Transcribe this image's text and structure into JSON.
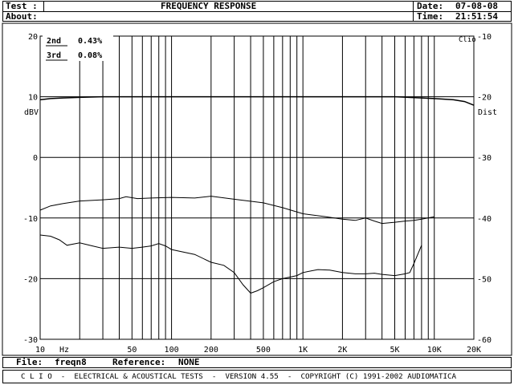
{
  "header": {
    "test_label": "Test :",
    "about_label": "About:",
    "title": "FREQUENCY RESPONSE",
    "date_label": "Date:",
    "date_value": "07-08-08",
    "time_label": "Time:",
    "time_value": "21:51:54"
  },
  "footer": {
    "file_label": "File:",
    "file_value": "freqn8",
    "reference_label": "Reference:",
    "reference_value": "NONE",
    "banner": "C L I O  -  ELECTRICAL & ACOUSTICAL TESTS  -  VERSION 4.55  -  COPYRIGHT (C) 1991-2002 AUDIOMATICA"
  },
  "chart_data": {
    "type": "line",
    "title": "FREQUENCY RESPONSE",
    "xlabel": "Hz",
    "ylabel": "dBV",
    "y2label": "Dist",
    "corner_label": "Clio",
    "xscale": "log",
    "xlim": [
      10,
      20000
    ],
    "ylim": [
      -30,
      20
    ],
    "y2lim": [
      -60,
      -10
    ],
    "grid": true,
    "x_major_ticks": [
      {
        "v": 10,
        "l": "10"
      },
      {
        "v": 50,
        "l": "50"
      },
      {
        "v": 100,
        "l": "100"
      },
      {
        "v": 200,
        "l": "200"
      },
      {
        "v": 500,
        "l": "500"
      },
      {
        "v": 1000,
        "l": "1K"
      },
      {
        "v": 2000,
        "l": "2K"
      },
      {
        "v": 5000,
        "l": "5K"
      },
      {
        "v": 10000,
        "l": "10K"
      },
      {
        "v": 20000,
        "l": "20K"
      }
    ],
    "y_ticks": [
      20,
      10,
      0,
      -10,
      -20,
      -30
    ],
    "y2_ticks": [
      -10,
      -20,
      -30,
      -40,
      -50,
      -60
    ],
    "legend": [
      {
        "label": "2nd",
        "value": "0.43%"
      },
      {
        "label": "3rd",
        "value": "0.08%"
      }
    ],
    "series": [
      {
        "axis": "left",
        "points": [
          [
            10,
            9.5
          ],
          [
            12,
            9.7
          ],
          [
            15,
            9.8
          ],
          [
            20,
            9.9
          ],
          [
            30,
            10
          ],
          [
            50,
            10
          ],
          [
            100,
            10
          ],
          [
            200,
            10
          ],
          [
            500,
            10
          ],
          [
            700,
            10
          ],
          [
            1000,
            10
          ],
          [
            2000,
            10
          ],
          [
            5000,
            10
          ],
          [
            8000,
            9.8
          ],
          [
            10000,
            9.7
          ],
          [
            14000,
            9.5
          ],
          [
            17000,
            9.2
          ],
          [
            20000,
            8.6
          ]
        ]
      },
      {
        "axis": "right",
        "points": [
          [
            10,
            -38.7
          ],
          [
            12,
            -38
          ],
          [
            15,
            -37.6
          ],
          [
            20,
            -37.2
          ],
          [
            30,
            -37
          ],
          [
            40,
            -36.8
          ],
          [
            45,
            -36.5
          ],
          [
            55,
            -36.8
          ],
          [
            70,
            -36.7
          ],
          [
            100,
            -36.6
          ],
          [
            150,
            -36.7
          ],
          [
            200,
            -36.4
          ],
          [
            300,
            -36.9
          ],
          [
            500,
            -37.5
          ],
          [
            700,
            -38.3
          ],
          [
            1000,
            -39.3
          ],
          [
            1500,
            -39.8
          ],
          [
            2000,
            -40.2
          ],
          [
            2500,
            -40.4
          ],
          [
            3000,
            -40
          ],
          [
            3500,
            -40.5
          ],
          [
            4000,
            -40.9
          ],
          [
            5000,
            -40.7
          ],
          [
            6000,
            -40.5
          ],
          [
            7000,
            -40.4
          ],
          [
            8000,
            -40.2
          ],
          [
            10000,
            -39.8
          ]
        ]
      },
      {
        "axis": "right",
        "points": [
          [
            10,
            -42.8
          ],
          [
            12,
            -43
          ],
          [
            14,
            -43.6
          ],
          [
            16,
            -44.5
          ],
          [
            20,
            -44.1
          ],
          [
            25,
            -44.6
          ],
          [
            30,
            -45
          ],
          [
            40,
            -44.8
          ],
          [
            50,
            -45
          ],
          [
            60,
            -44.8
          ],
          [
            70,
            -44.6
          ],
          [
            80,
            -44.2
          ],
          [
            90,
            -44.6
          ],
          [
            100,
            -45.2
          ],
          [
            150,
            -46
          ],
          [
            200,
            -47.3
          ],
          [
            250,
            -47.8
          ],
          [
            300,
            -49
          ],
          [
            350,
            -51
          ],
          [
            400,
            -52.4
          ],
          [
            450,
            -52
          ],
          [
            500,
            -51.5
          ],
          [
            600,
            -50.5
          ],
          [
            700,
            -50
          ],
          [
            900,
            -49.5
          ],
          [
            1000,
            -49
          ],
          [
            1300,
            -48.5
          ],
          [
            1600,
            -48.6
          ],
          [
            2000,
            -49
          ],
          [
            2500,
            -49.2
          ],
          [
            3000,
            -49.2
          ],
          [
            3500,
            -49.1
          ],
          [
            4000,
            -49.3
          ],
          [
            5000,
            -49.5
          ],
          [
            6000,
            -49.2
          ],
          [
            6500,
            -49
          ],
          [
            7000,
            -47.5
          ],
          [
            8000,
            -44.5
          ]
        ]
      }
    ]
  }
}
